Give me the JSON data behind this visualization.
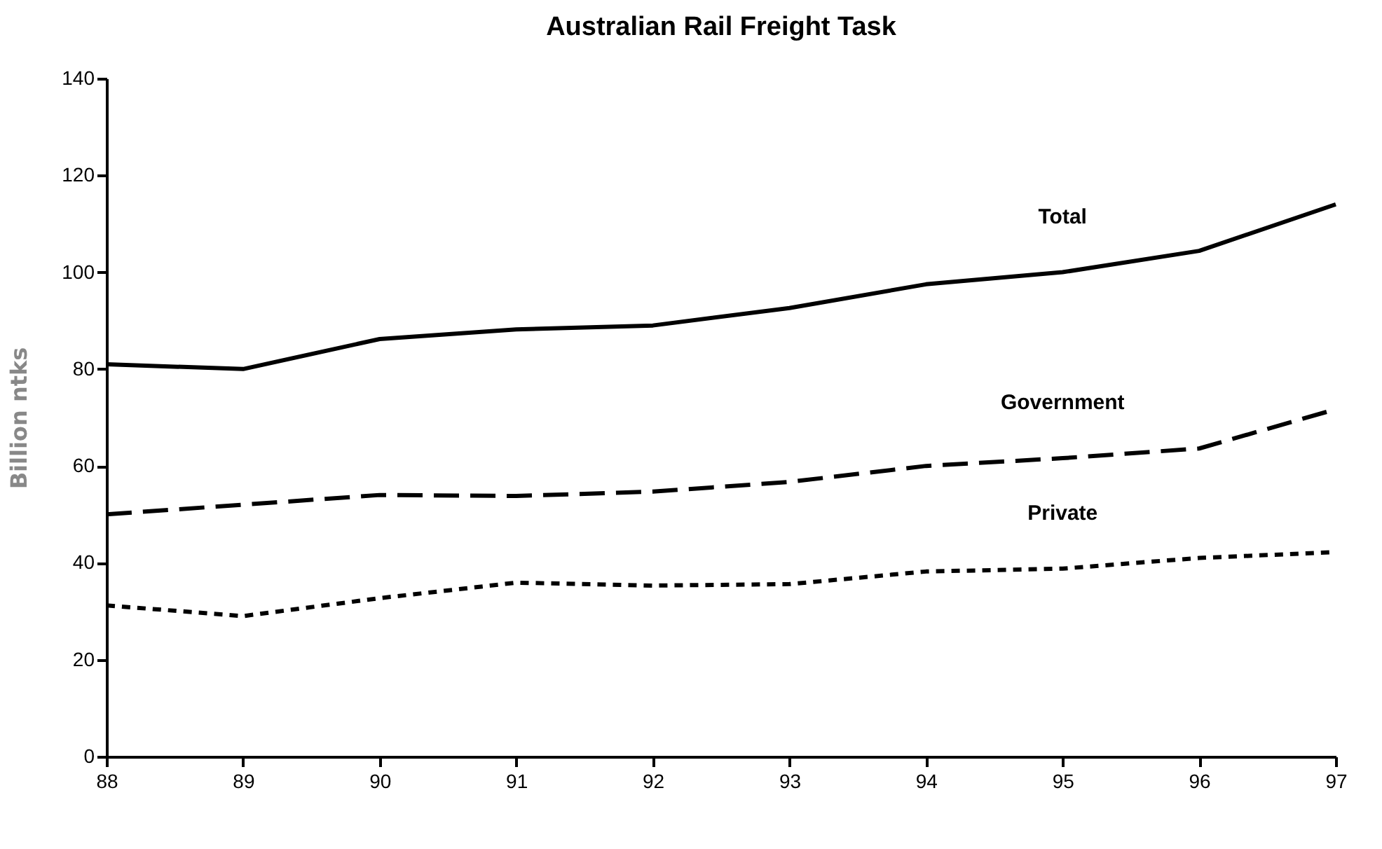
{
  "chart_data": {
    "type": "line",
    "title": "Australian Rail Freight Task",
    "ylabel": "Billion ntks",
    "x": [
      88,
      89,
      90,
      91,
      92,
      93,
      94,
      95,
      96,
      97
    ],
    "xlim": [
      88,
      97
    ],
    "xticks": [
      88,
      89,
      90,
      91,
      92,
      93,
      94,
      95,
      96,
      97
    ],
    "ylim": [
      0,
      140
    ],
    "yticks": [
      0,
      20,
      40,
      60,
      80,
      100,
      120,
      140
    ],
    "grid": false,
    "marker": "none",
    "series": [
      {
        "name": "Total",
        "color": "#000000",
        "line_style": "solid",
        "values": [
          81,
          80,
          86.2,
          88.2,
          89,
          92.6,
          97.5,
          100,
          104.4,
          114
        ]
      },
      {
        "name": "Government",
        "color": "#000000",
        "line_style": "dashed",
        "values": [
          50,
          52,
          54,
          53.8,
          54.7,
          56.7,
          60,
          61.6,
          63.6,
          71.7
        ]
      },
      {
        "name": "Private",
        "color": "#000000",
        "line_style": "dotted",
        "values": [
          31.2,
          29,
          32.7,
          35.9,
          35.3,
          35.6,
          38.2,
          38.8,
          41,
          42.2
        ]
      }
    ]
  }
}
